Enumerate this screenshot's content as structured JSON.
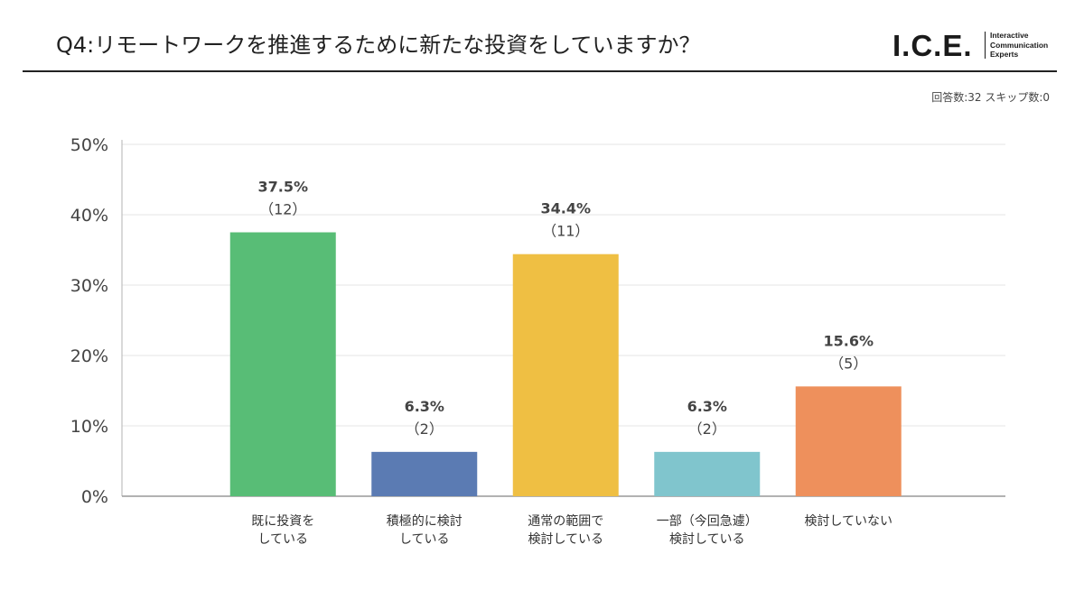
{
  "header": {
    "title": "Q4:リモートワークを推進するために新たな投資をしていますか？",
    "logo_mark": "I.C.E.",
    "logo_tagline": [
      "Interactive",
      "Communication",
      "Experts"
    ]
  },
  "responses": "回答数:32 スキップ数:0",
  "chart_data": {
    "type": "bar",
    "categories": [
      [
        "既に投資を",
        "している"
      ],
      [
        "積極的に検討",
        "している"
      ],
      [
        "通常の範囲で",
        "検討している"
      ],
      [
        "一部（今回急遽）",
        "検討している"
      ],
      [
        "検討していない"
      ]
    ],
    "values": [
      37.5,
      6.3,
      34.4,
      6.3,
      15.6
    ],
    "value_labels": [
      "37.5%",
      "6.3%",
      "34.4%",
      "6.3%",
      "15.6%"
    ],
    "count_labels": [
      "（12）",
      "（2）",
      "（11）",
      "（2）",
      "（5）"
    ],
    "colors": [
      "#58bd76",
      "#5b7bb3",
      "#efbf43",
      "#80c5cd",
      "#ee905c"
    ],
    "ylim": [
      0,
      50
    ],
    "yticks": [
      0,
      10,
      20,
      30,
      40,
      50
    ],
    "ytick_labels": [
      "0%",
      "10%",
      "20%",
      "30%",
      "40%",
      "50%"
    ],
    "grid": true,
    "title": "",
    "xlabel": "",
    "ylabel": ""
  }
}
